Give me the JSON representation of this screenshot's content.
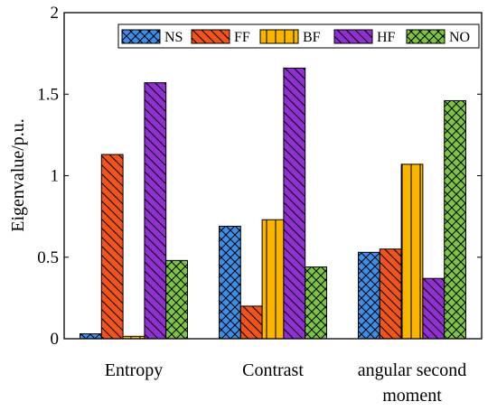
{
  "chart_data": {
    "type": "bar",
    "categories": [
      "Entropy",
      "Contrast",
      "angular second moment"
    ],
    "category_lines": [
      [
        "Entropy"
      ],
      [
        "Contrast"
      ],
      [
        "angular second",
        "moment"
      ]
    ],
    "series": [
      {
        "name": "NS",
        "color": "#3d8ee8",
        "pattern": "crosshatch",
        "values": [
          0.03,
          0.69,
          0.53
        ]
      },
      {
        "name": "FF",
        "color": "#f0541a",
        "pattern": "backslash",
        "values": [
          1.13,
          0.2,
          0.55
        ]
      },
      {
        "name": "BF",
        "color": "#f9b404",
        "pattern": "vertical",
        "values": [
          0.015,
          0.73,
          1.07
        ]
      },
      {
        "name": "HF",
        "color": "#9030d0",
        "pattern": "backslash",
        "values": [
          1.57,
          1.66,
          0.37
        ]
      },
      {
        "name": "NO",
        "color": "#7cc444",
        "pattern": "crosshatch",
        "values": [
          0.48,
          0.44,
          1.46
        ]
      }
    ],
    "ylabel": "Eigenvalue/p.u.",
    "xlabel": "",
    "ylim": [
      0,
      2
    ],
    "yticks": [
      0,
      0.5,
      1,
      1.5,
      2
    ],
    "ytick_labels": [
      "0",
      "0.5",
      "1",
      "1.5",
      "2"
    ],
    "grid": false,
    "legend_position": "top-right"
  }
}
